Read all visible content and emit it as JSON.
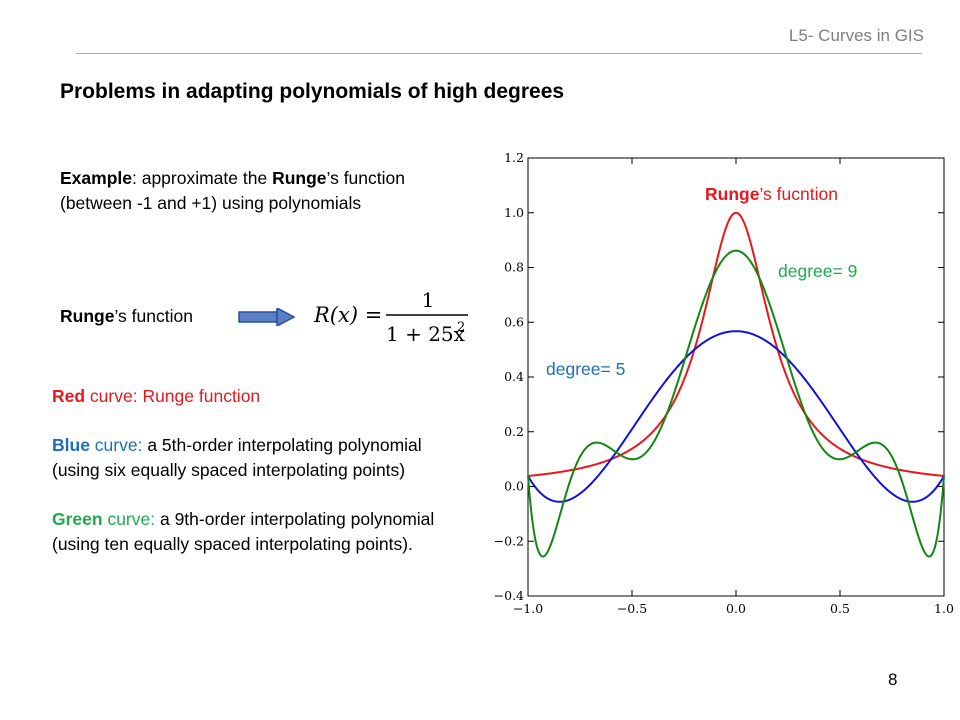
{
  "header": {
    "course": "L5- Curves in GIS"
  },
  "title": "Problems in adapting polynomials of high degrees",
  "example": {
    "lead_bold": "Example",
    "text1": ": approximate the ",
    "runge_bold": "Runge",
    "text2": "’s function (between -1 and +1) using polynomials"
  },
  "runge_function": {
    "bold": "Runge",
    "rest": "’s function",
    "formula_lhs": "R(x) =",
    "formula_num": "1",
    "formula_den": "1 + 25x",
    "formula_exp": "2"
  },
  "legend": {
    "red_word": "Red",
    "red_text": " curve: Runge function",
    "blue_word": "Blue",
    "blue_text1": " curve: ",
    "blue_text2": "a 5th-order interpolating polynomial (using six equally spaced interpolating points)",
    "green_word": "Green",
    "green_text1": " curve: ",
    "green_text2": "a 9th-order interpolating polynomial (using ten equally spaced interpolating points)."
  },
  "chart_labels": {
    "runge_bold": "Runge",
    "runge_rest": "’s fucntion",
    "degree9": "degree= 9",
    "degree5": "degree= 5"
  },
  "colors": {
    "red": "#e8171c",
    "blue": "#1f6fba",
    "green": "#1faa4f"
  },
  "page_number": "8",
  "chart_data": {
    "type": "line",
    "xlim": [
      -1.0,
      1.0
    ],
    "ylim": [
      -0.4,
      1.2
    ],
    "xticks": [
      "−1.0",
      "−0.5",
      "0.0",
      "0.5",
      "1.0"
    ],
    "yticks": [
      "−0.4",
      "−0.2",
      "0.0",
      "0.2",
      "0.4",
      "0.6",
      "0.8",
      "1.0",
      "1.2"
    ],
    "grid": false,
    "series": [
      {
        "name": "Runge’s fucntion",
        "color": "#e8171c",
        "function": "runge",
        "nodes": []
      },
      {
        "name": "degree= 5",
        "color": "#1111dd",
        "function": "interp",
        "nodes": 6
      },
      {
        "name": "degree= 9",
        "color": "#118811",
        "function": "interp",
        "nodes": 10
      }
    ]
  }
}
